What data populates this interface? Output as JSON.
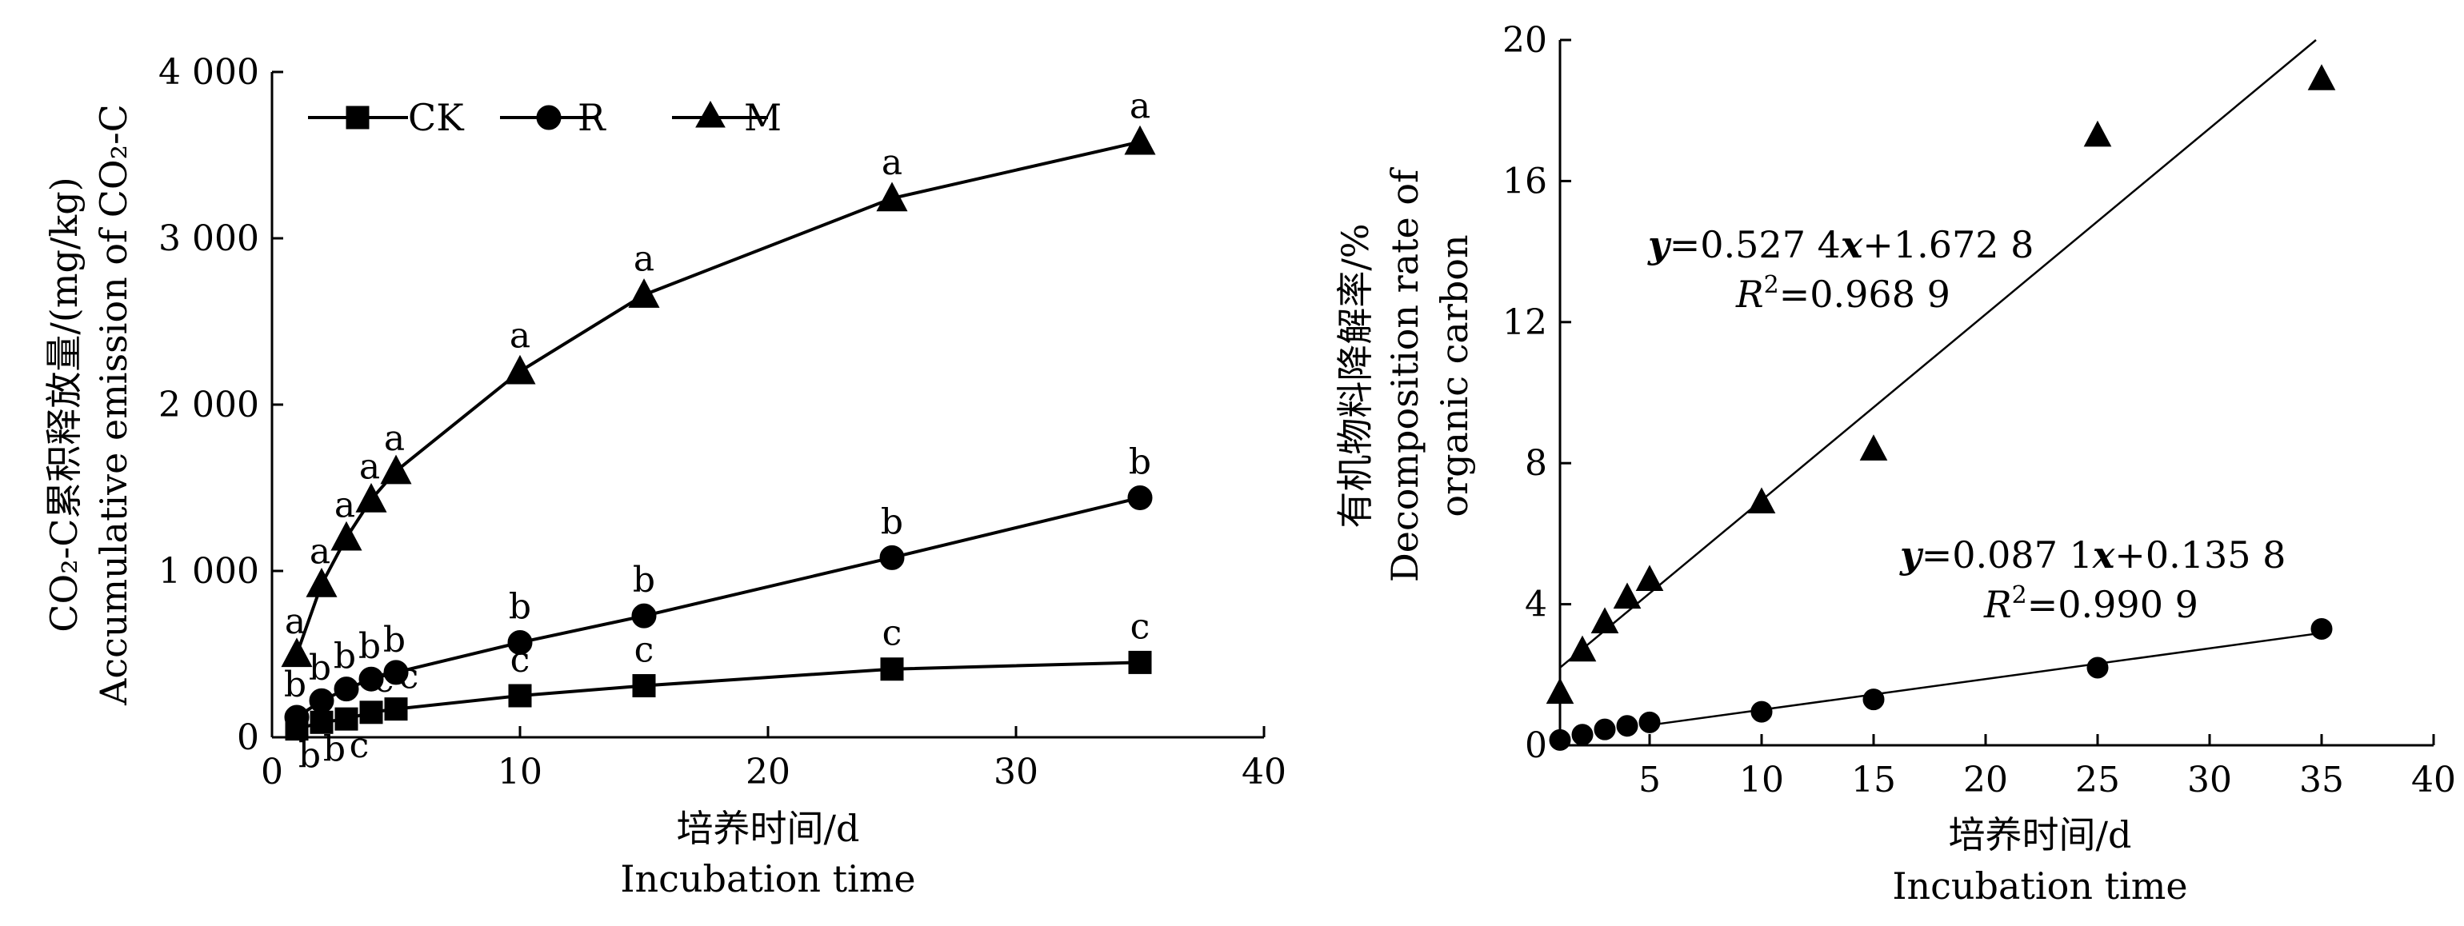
{
  "chart_data": [
    {
      "type": "line",
      "xlabel_cn": "培养时间/d",
      "xlabel_en": "Incubation time",
      "ylabel_cn": "CO₂-C累积释放量/(mg/kg)",
      "ylabel_en": "Accumulative emission of CO₂-C",
      "xlim": [
        0,
        40
      ],
      "ylim": [
        0,
        4000
      ],
      "x_ticks": [
        0,
        10,
        20,
        30,
        40
      ],
      "x_tick_labels": [
        "0",
        "10",
        "20",
        "30",
        "40"
      ],
      "y_ticks": [
        0,
        1000,
        2000,
        3000,
        4000
      ],
      "y_tick_labels": [
        "0",
        "1 000",
        "2 000",
        "3 000",
        "4 000"
      ],
      "legend_position": "top-left",
      "series": [
        {
          "name": "CK",
          "marker": "square",
          "x": [
            1,
            2,
            3,
            4,
            5,
            10,
            15,
            25,
            35
          ],
          "y": [
            50,
            90,
            110,
            150,
            170,
            250,
            310,
            410,
            450
          ],
          "letters": [
            "b",
            "b",
            "c",
            "c",
            "c",
            "c",
            "c",
            "c",
            "c"
          ]
        },
        {
          "name": "R",
          "marker": "circle",
          "x": [
            1,
            2,
            3,
            4,
            5,
            10,
            15,
            25,
            35
          ],
          "y": [
            120,
            220,
            290,
            350,
            390,
            570,
            730,
            1080,
            1440
          ],
          "letters": [
            "b",
            "b",
            "b",
            "b",
            "b",
            "b",
            "b",
            "b",
            "b"
          ]
        },
        {
          "name": "M",
          "marker": "triangle",
          "x": [
            1,
            2,
            3,
            4,
            5,
            10,
            15,
            25,
            35
          ],
          "y": [
            500,
            920,
            1200,
            1430,
            1600,
            2200,
            2660,
            3240,
            3580
          ],
          "letters": [
            "a",
            "a",
            "a",
            "a",
            "a",
            "a",
            "a",
            "a",
            "a"
          ]
        }
      ]
    },
    {
      "type": "scatter",
      "xlabel_cn": "培养时间/d",
      "xlabel_en": "Incubation time",
      "ylabel_cn": "有机物料降解率/%",
      "ylabel_en_1": "Decomposition rate of",
      "ylabel_en_2": "organic carbon",
      "xlim": [
        1,
        40
      ],
      "ylim": [
        0,
        20
      ],
      "x_ticks": [
        5,
        10,
        15,
        20,
        25,
        30,
        35,
        40
      ],
      "x_tick_labels": [
        "5",
        "10",
        "15",
        "20",
        "25",
        "30",
        "35",
        "40"
      ],
      "y_ticks": [
        0,
        4,
        8,
        12,
        16,
        20
      ],
      "y_tick_labels": [
        "0",
        "4",
        "8",
        "12",
        "16",
        "20"
      ],
      "series": [
        {
          "marker": "triangle",
          "x": [
            1,
            2,
            3,
            4,
            5,
            10,
            15,
            25,
            35
          ],
          "y": [
            1.5,
            2.7,
            3.5,
            4.2,
            4.7,
            6.9,
            8.4,
            17.3,
            18.9
          ],
          "fit": {
            "slope": 0.5274,
            "intercept": 1.6728
          },
          "equation": [
            "y",
            "=0.527 4",
            "x",
            "+1.672 8"
          ],
          "r2": [
            "R",
            "2",
            "=0.968 9"
          ]
        },
        {
          "marker": "circle",
          "x": [
            1,
            2,
            3,
            4,
            5,
            10,
            15,
            25,
            35
          ],
          "y": [
            0.15,
            0.3,
            0.45,
            0.55,
            0.65,
            0.95,
            1.3,
            2.2,
            3.3
          ],
          "fit": {
            "slope": 0.0871,
            "intercept": 0.1358
          },
          "equation": [
            "y",
            "=0.087 1",
            "x",
            "+0.135 8"
          ],
          "r2": [
            "R",
            "2",
            "=0.990 9"
          ]
        }
      ]
    }
  ]
}
